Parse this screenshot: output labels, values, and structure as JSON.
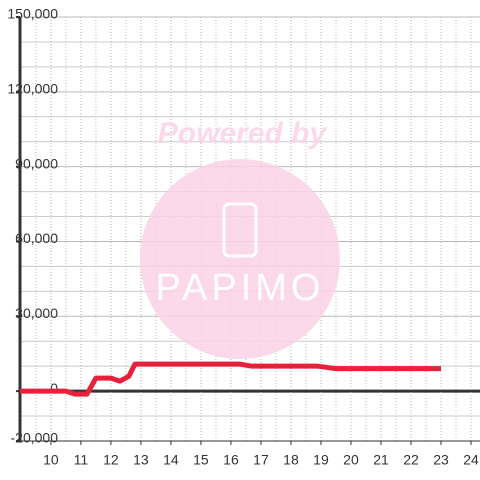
{
  "chart_data": {
    "type": "line",
    "watermark": {
      "line1": "Powered by",
      "line2": "PAPIMO"
    },
    "x": [
      8.97,
      10.5,
      10.8,
      11.2,
      11.5,
      12,
      12.3,
      12.6,
      12.8,
      16.3,
      16.7,
      18.9,
      19.5,
      23
    ],
    "series": [
      {
        "color": "#e8213a",
        "values": [
          0,
          0,
          -1200,
          -1200,
          5200,
          5200,
          4000,
          6000,
          10800,
          10800,
          10000,
          10000,
          9000,
          9000
        ]
      }
    ],
    "xlim": [
      8.97,
      24.3
    ],
    "xticks": [
      10,
      11,
      12,
      13,
      14,
      15,
      16,
      17,
      18,
      19,
      20,
      21,
      22,
      23,
      24
    ],
    "ylim": [
      -20000,
      150000
    ],
    "yticks": [
      {
        "value": -20000,
        "label": "-20,000"
      },
      {
        "value": 0,
        "label": "0"
      },
      {
        "value": 30000,
        "label": "30,000"
      },
      {
        "value": 60000,
        "label": "60,000"
      },
      {
        "value": 90000,
        "label": "90,000"
      },
      {
        "value": 120000,
        "label": "120,000"
      },
      {
        "value": 150000,
        "label": "150,000"
      }
    ],
    "grid": true
  }
}
